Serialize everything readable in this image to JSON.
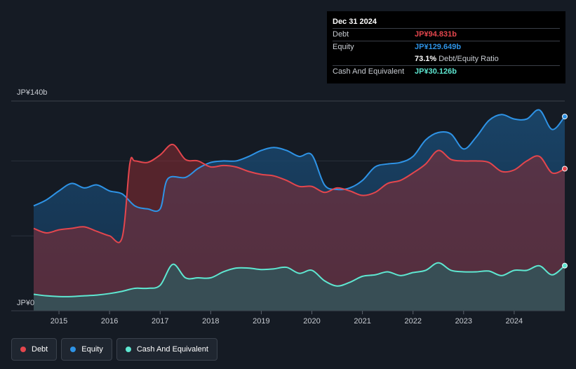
{
  "tooltip": {
    "date": "Dec 31 2024",
    "debt_label": "Debt",
    "debt_value": "JP¥94.831b",
    "equity_label": "Equity",
    "equity_value": "JP¥129.649b",
    "ratio_value": "73.1%",
    "ratio_label": "Debt/Equity Ratio",
    "cash_label": "Cash And Equivalent",
    "cash_value": "JP¥30.126b"
  },
  "colors": {
    "debt": "#e4464d",
    "equity": "#2e93e6",
    "cash": "#5ee7d1"
  },
  "legend": [
    {
      "label": "Debt",
      "color": "#e4464d"
    },
    {
      "label": "Equity",
      "color": "#2e93e6"
    },
    {
      "label": "Cash And Equivalent",
      "color": "#5ee7d1"
    }
  ],
  "chart_data": {
    "type": "area",
    "y_unit": "JP¥ billions",
    "ylim": [
      0,
      140
    ],
    "y_tick_labels": [
      {
        "value": 140,
        "label": "JP¥140b"
      },
      {
        "value": 0,
        "label": "JP¥0"
      }
    ],
    "xlim": [
      2014.5,
      2025.0
    ],
    "x_ticks": [
      2015,
      2016,
      2017,
      2018,
      2019,
      2020,
      2021,
      2022,
      2023,
      2024
    ],
    "x_tick_labels": [
      "2015",
      "2016",
      "2017",
      "2018",
      "2019",
      "2020",
      "2021",
      "2022",
      "2023",
      "2024"
    ],
    "series": [
      {
        "name": "Equity",
        "points": [
          [
            2014.5,
            70
          ],
          [
            2014.75,
            74
          ],
          [
            2015.0,
            80
          ],
          [
            2015.25,
            85
          ],
          [
            2015.5,
            82
          ],
          [
            2015.75,
            84
          ],
          [
            2016.0,
            80
          ],
          [
            2016.25,
            78
          ],
          [
            2016.5,
            70
          ],
          [
            2016.75,
            68
          ],
          [
            2017.0,
            68
          ],
          [
            2017.15,
            88
          ],
          [
            2017.5,
            89
          ],
          [
            2017.75,
            95
          ],
          [
            2018.0,
            99
          ],
          [
            2018.25,
            100
          ],
          [
            2018.5,
            100
          ],
          [
            2018.75,
            103
          ],
          [
            2019.0,
            107
          ],
          [
            2019.25,
            109
          ],
          [
            2019.5,
            107
          ],
          [
            2019.75,
            103
          ],
          [
            2020.0,
            104
          ],
          [
            2020.25,
            84
          ],
          [
            2020.5,
            81
          ],
          [
            2020.75,
            82
          ],
          [
            2021.0,
            87
          ],
          [
            2021.25,
            96
          ],
          [
            2021.5,
            98
          ],
          [
            2021.75,
            99
          ],
          [
            2022.0,
            103
          ],
          [
            2022.25,
            114
          ],
          [
            2022.5,
            119
          ],
          [
            2022.75,
            118
          ],
          [
            2023.0,
            108
          ],
          [
            2023.25,
            116
          ],
          [
            2023.5,
            127
          ],
          [
            2023.75,
            131
          ],
          [
            2024.0,
            128
          ],
          [
            2024.25,
            128
          ],
          [
            2024.5,
            134
          ],
          [
            2024.75,
            121
          ],
          [
            2025.0,
            129.649
          ]
        ]
      },
      {
        "name": "Debt",
        "points": [
          [
            2014.5,
            55
          ],
          [
            2014.75,
            52
          ],
          [
            2015.0,
            54
          ],
          [
            2015.25,
            55
          ],
          [
            2015.5,
            56
          ],
          [
            2015.75,
            53
          ],
          [
            2016.0,
            50
          ],
          [
            2016.25,
            49
          ],
          [
            2016.4,
            98
          ],
          [
            2016.5,
            100
          ],
          [
            2016.75,
            99
          ],
          [
            2017.0,
            104
          ],
          [
            2017.25,
            111
          ],
          [
            2017.5,
            101
          ],
          [
            2017.75,
            100
          ],
          [
            2018.0,
            96
          ],
          [
            2018.25,
            97
          ],
          [
            2018.5,
            96
          ],
          [
            2018.75,
            93
          ],
          [
            2019.0,
            91
          ],
          [
            2019.25,
            90
          ],
          [
            2019.5,
            87
          ],
          [
            2019.75,
            83
          ],
          [
            2020.0,
            83
          ],
          [
            2020.25,
            79
          ],
          [
            2020.5,
            82
          ],
          [
            2020.75,
            80
          ],
          [
            2021.0,
            77
          ],
          [
            2021.25,
            79
          ],
          [
            2021.5,
            85
          ],
          [
            2021.75,
            87
          ],
          [
            2022.0,
            92
          ],
          [
            2022.25,
            98
          ],
          [
            2022.5,
            107
          ],
          [
            2022.75,
            101
          ],
          [
            2023.0,
            100
          ],
          [
            2023.25,
            100
          ],
          [
            2023.5,
            99
          ],
          [
            2023.75,
            93
          ],
          [
            2024.0,
            94
          ],
          [
            2024.25,
            100
          ],
          [
            2024.5,
            103
          ],
          [
            2024.75,
            92
          ],
          [
            2025.0,
            94.831
          ]
        ]
      },
      {
        "name": "Cash And Equivalent",
        "points": [
          [
            2014.5,
            11
          ],
          [
            2014.75,
            10
          ],
          [
            2015.0,
            9.5
          ],
          [
            2015.25,
            9.5
          ],
          [
            2015.5,
            10
          ],
          [
            2015.75,
            10.5
          ],
          [
            2016.0,
            11.5
          ],
          [
            2016.25,
            13
          ],
          [
            2016.5,
            15
          ],
          [
            2016.75,
            15
          ],
          [
            2017.0,
            17
          ],
          [
            2017.25,
            31
          ],
          [
            2017.5,
            22
          ],
          [
            2017.75,
            22
          ],
          [
            2018.0,
            22
          ],
          [
            2018.25,
            26
          ],
          [
            2018.5,
            28.5
          ],
          [
            2018.75,
            28.5
          ],
          [
            2019.0,
            27.5
          ],
          [
            2019.25,
            28
          ],
          [
            2019.5,
            29
          ],
          [
            2019.75,
            25
          ],
          [
            2020.0,
            27
          ],
          [
            2020.25,
            20
          ],
          [
            2020.5,
            16.5
          ],
          [
            2020.75,
            19
          ],
          [
            2021.0,
            23
          ],
          [
            2021.25,
            24
          ],
          [
            2021.5,
            26
          ],
          [
            2021.75,
            23.5
          ],
          [
            2022.0,
            25.5
          ],
          [
            2022.25,
            27
          ],
          [
            2022.5,
            32
          ],
          [
            2022.75,
            27
          ],
          [
            2023.0,
            26
          ],
          [
            2023.25,
            26
          ],
          [
            2023.5,
            26.5
          ],
          [
            2023.75,
            23.5
          ],
          [
            2024.0,
            27
          ],
          [
            2024.25,
            27
          ],
          [
            2024.5,
            30
          ],
          [
            2024.75,
            24
          ],
          [
            2025.0,
            30.126
          ]
        ]
      }
    ]
  }
}
